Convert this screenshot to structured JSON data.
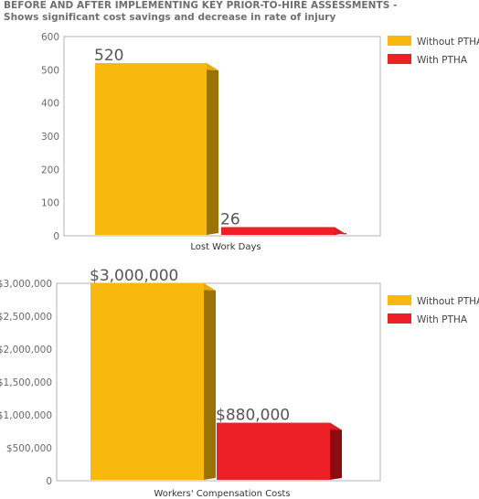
{
  "title": {
    "line1": "BEFORE AND AFTER IMPLEMENTING KEY PRIOR-TO-HIRE ASSESSMENTS -",
    "line2": "Shows significant cost savings and decrease in rate of injury"
  },
  "colors": {
    "without": "#F9B80E",
    "without_side": "#9A7306",
    "with": "#EE2027",
    "with_side": "#8B0C10",
    "grid": "#b3b3b3"
  },
  "chart_data": [
    {
      "type": "bar",
      "title": "BEFORE AND AFTER IMPLEMENTING KEY PRIOR-TO-HIRE ASSESSMENTS - Shows significant cost savings and decrease in rate of injury",
      "xlabel": "Lost Work Days",
      "ylabel": "",
      "ylim": [
        0,
        600
      ],
      "yticks": [
        0,
        100,
        200,
        300,
        400,
        500,
        600
      ],
      "ytick_labels": [
        "0",
        "100",
        "200",
        "300",
        "400",
        "500",
        "600"
      ],
      "categories": [
        "Lost Work Days"
      ],
      "series": [
        {
          "name": "Without PTHA",
          "values": [
            520
          ],
          "label": "520"
        },
        {
          "name": "With PTHA",
          "values": [
            26
          ],
          "label": "26"
        }
      ],
      "legend_position": "top-right",
      "grid": false
    },
    {
      "type": "bar",
      "xlabel": "Workers' Compensation Costs",
      "ylabel": "",
      "ylim": [
        0,
        3000000
      ],
      "yticks": [
        0,
        500000,
        1000000,
        1500000,
        2000000,
        2500000,
        3000000
      ],
      "ytick_labels": [
        "0",
        "$500,000",
        "$1,000,000",
        "$1,500,000",
        "$2,000,000",
        "$2,500,000",
        "$3,000,000"
      ],
      "categories": [
        "Workers' Compensation Costs"
      ],
      "series": [
        {
          "name": "Without PTHA",
          "values": [
            3000000
          ],
          "label": "$3,000,000"
        },
        {
          "name": "With PTHA",
          "values": [
            880000
          ],
          "label": "$880,000"
        }
      ],
      "legend_position": "top-right",
      "grid": false
    }
  ]
}
